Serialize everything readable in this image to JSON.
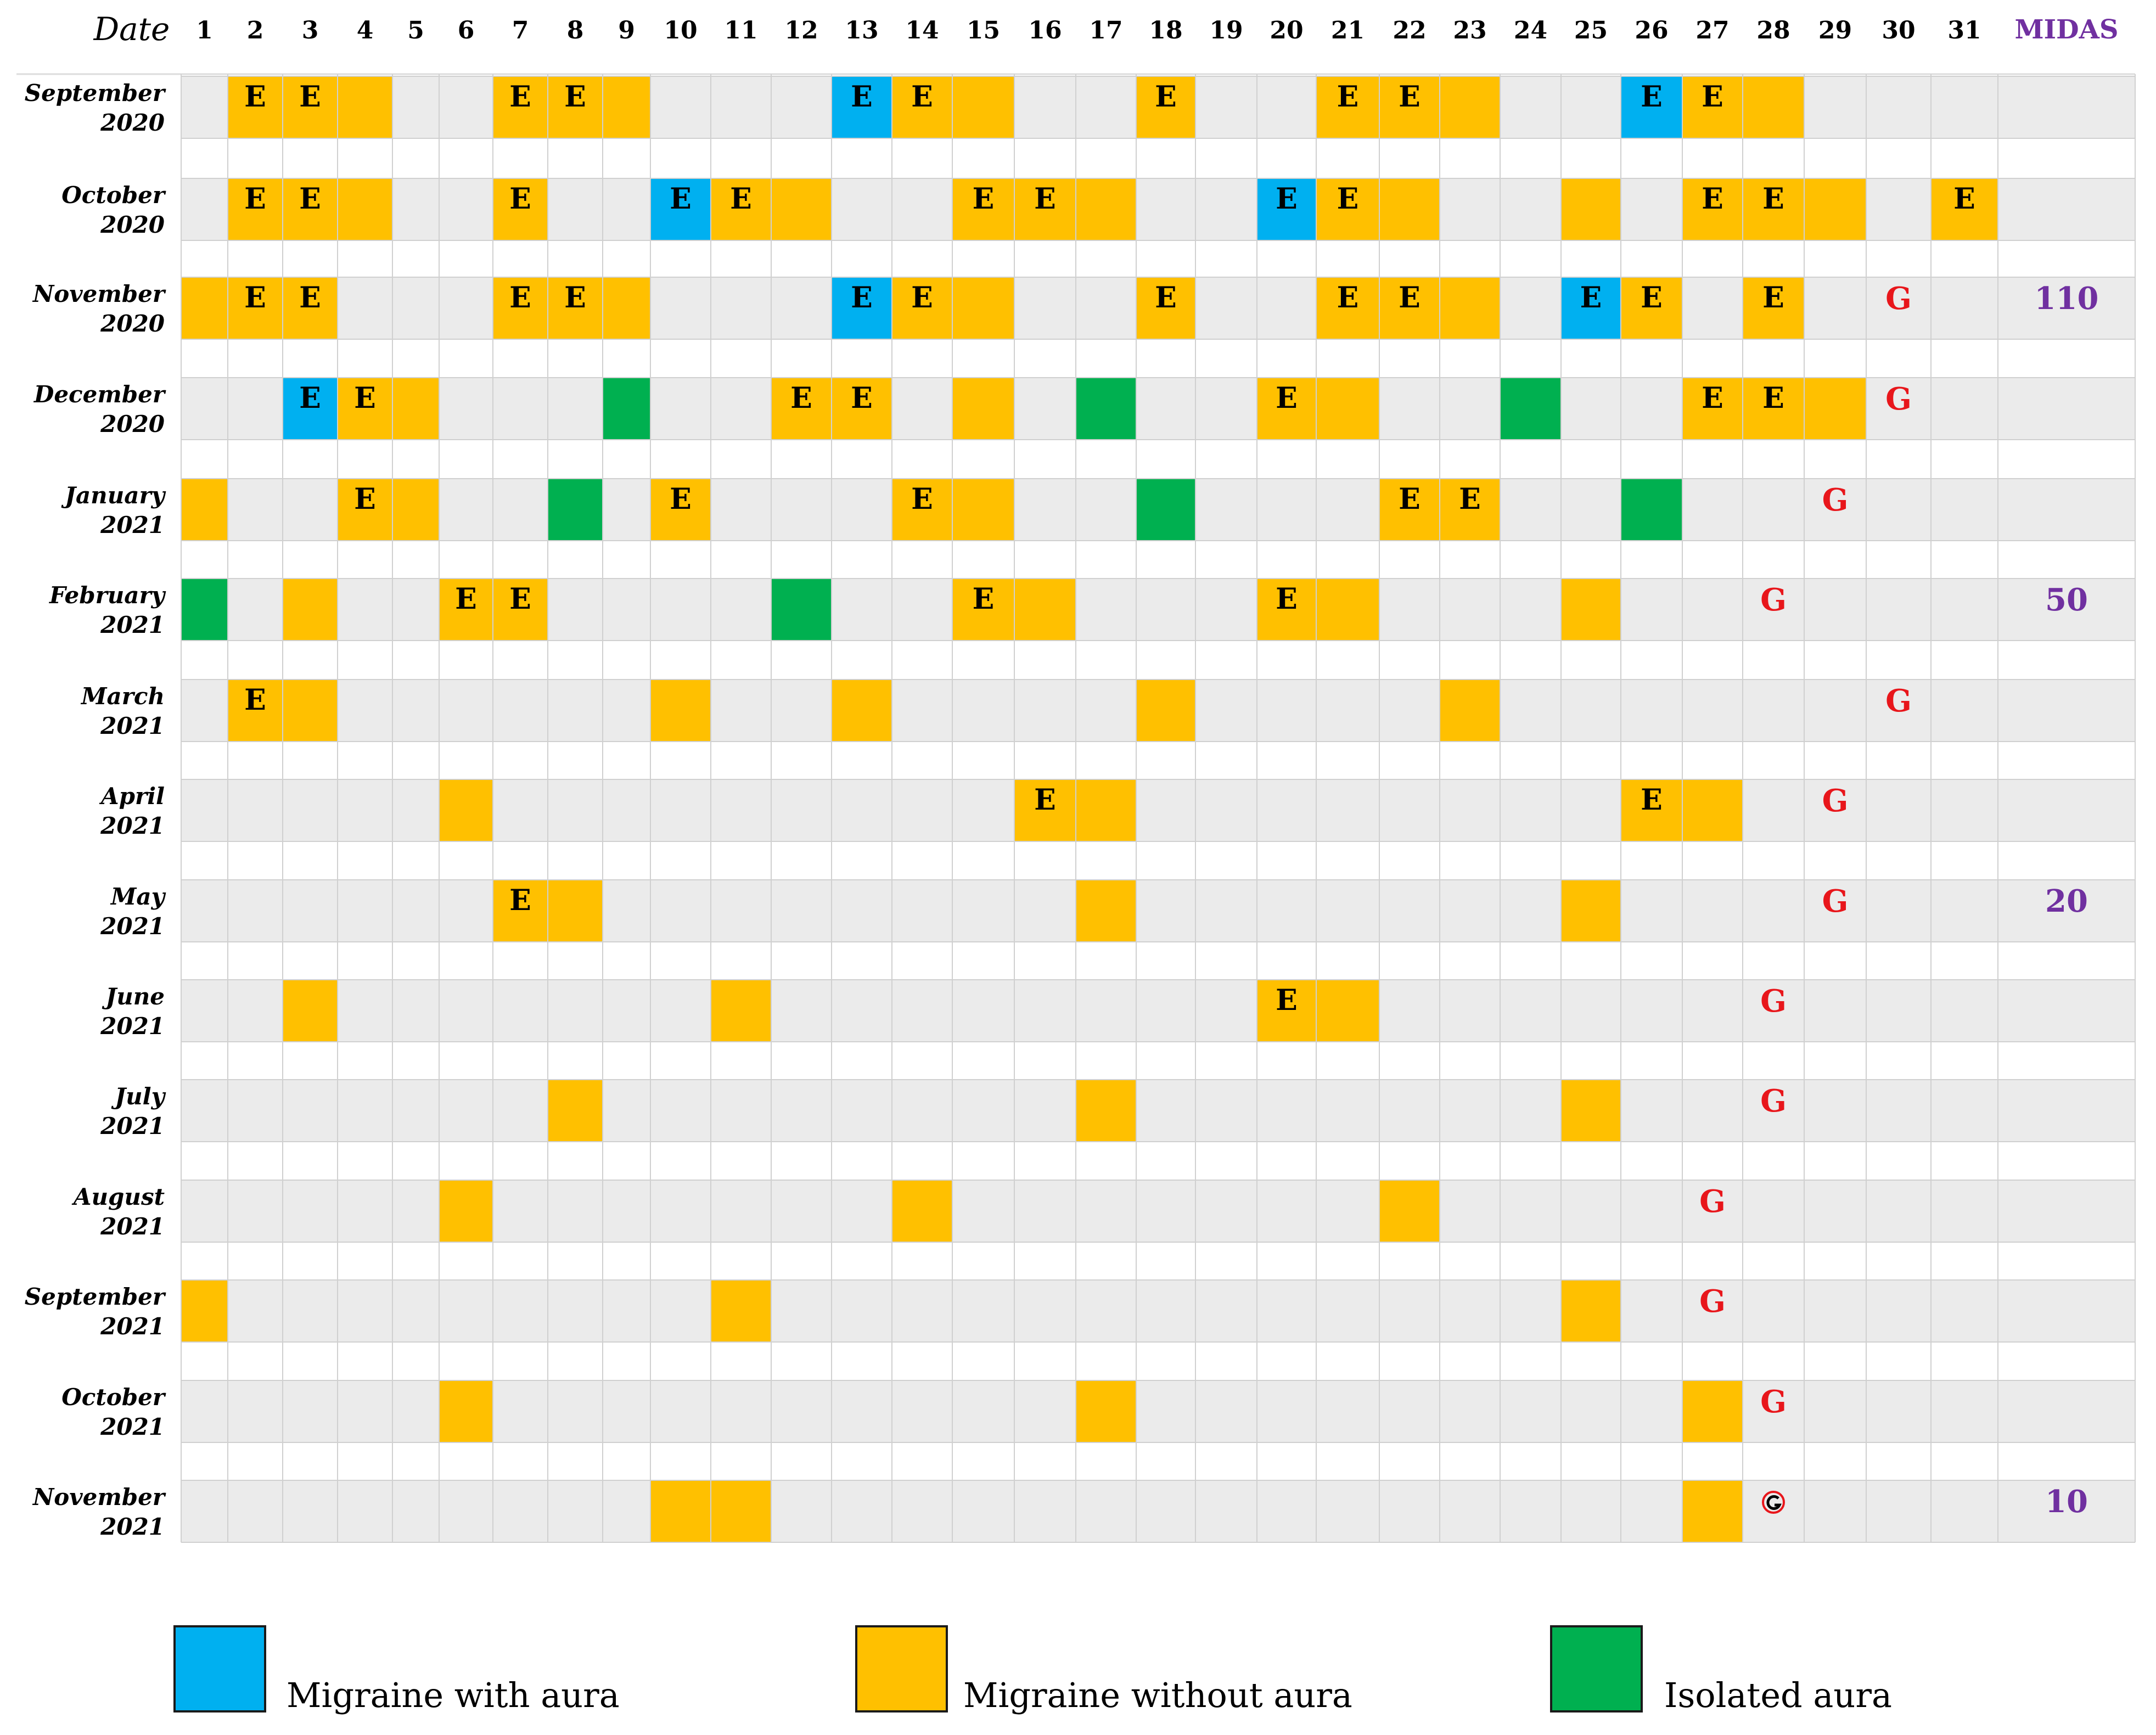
{
  "chart_data": {
    "type": "table",
    "title": "",
    "corner_label": "Date",
    "midas_header": "MIDAS",
    "days": [
      1,
      2,
      3,
      4,
      5,
      6,
      7,
      8,
      9,
      10,
      11,
      12,
      13,
      14,
      15,
      16,
      17,
      18,
      19,
      20,
      21,
      22,
      23,
      24,
      25,
      26,
      27,
      28,
      29,
      30,
      31
    ],
    "colors": {
      "aura": "#00b0f0",
      "no_aura": "#ffc000",
      "isolated": "#00b050",
      "row_bg": "#ebebeb",
      "grid": "#d0d0d0",
      "g_mark": "#e8161b",
      "midas": "#7030a0"
    },
    "legend": [
      {
        "key": "aura",
        "label": "Migraine with aura"
      },
      {
        "key": "no_aura",
        "label": "Migraine without aura"
      },
      {
        "key": "isolated",
        "label": "Isolated aura"
      }
    ],
    "rows": [
      {
        "month": "September",
        "year": "2020",
        "aura": [
          13,
          26
        ],
        "no_aura": [
          2,
          3,
          4,
          7,
          8,
          9,
          14,
          15,
          18,
          21,
          22,
          23,
          27,
          28
        ],
        "isolated": [],
        "e": [
          2,
          3,
          7,
          8,
          13,
          14,
          18,
          21,
          22,
          26,
          27
        ],
        "g": null,
        "g_symbol": "",
        "midas": ""
      },
      {
        "month": "October",
        "year": "2020",
        "aura": [
          10,
          20
        ],
        "no_aura": [
          2,
          3,
          4,
          7,
          11,
          12,
          15,
          16,
          17,
          21,
          22,
          25,
          27,
          28,
          29,
          31
        ],
        "isolated": [],
        "e": [
          2,
          3,
          7,
          10,
          11,
          15,
          16,
          20,
          21,
          27,
          28,
          31
        ],
        "g": null,
        "g_symbol": "",
        "midas": ""
      },
      {
        "month": "November",
        "year": "2020",
        "aura": [
          13,
          25
        ],
        "no_aura": [
          1,
          2,
          3,
          7,
          8,
          9,
          14,
          15,
          18,
          21,
          22,
          23,
          26,
          28
        ],
        "isolated": [],
        "e": [
          2,
          3,
          7,
          8,
          13,
          14,
          18,
          21,
          22,
          25,
          26,
          28
        ],
        "g": 30,
        "g_symbol": "G",
        "midas": "110"
      },
      {
        "month": "December",
        "year": "2020",
        "aura": [
          3
        ],
        "no_aura": [
          4,
          5,
          12,
          13,
          15,
          20,
          21,
          27,
          28,
          29
        ],
        "isolated": [
          9,
          17,
          24
        ],
        "e": [
          3,
          4,
          12,
          13,
          20,
          27,
          28
        ],
        "g": 30,
        "g_symbol": "G",
        "midas": ""
      },
      {
        "month": "January",
        "year": "2021",
        "aura": [],
        "no_aura": [
          1,
          4,
          5,
          10,
          14,
          15,
          22,
          23
        ],
        "isolated": [
          8,
          18,
          26
        ],
        "e": [
          4,
          10,
          14,
          22,
          23
        ],
        "g": 29,
        "g_symbol": "G",
        "midas": ""
      },
      {
        "month": "February",
        "year": "2021",
        "aura": [],
        "no_aura": [
          3,
          6,
          7,
          15,
          16,
          20,
          21,
          25
        ],
        "isolated": [
          1,
          12
        ],
        "e": [
          6,
          7,
          15,
          20
        ],
        "g": 28,
        "g_symbol": "G",
        "midas": "50"
      },
      {
        "month": "March",
        "year": "2021",
        "aura": [],
        "no_aura": [
          2,
          3,
          10,
          13,
          18,
          23
        ],
        "isolated": [],
        "e": [
          2
        ],
        "g": 30,
        "g_symbol": "G",
        "midas": ""
      },
      {
        "month": "April",
        "year": "2021",
        "aura": [],
        "no_aura": [
          6,
          16,
          17,
          26,
          27
        ],
        "isolated": [],
        "e": [
          16,
          26
        ],
        "g": 29,
        "g_symbol": "G",
        "midas": ""
      },
      {
        "month": "May",
        "year": "2021",
        "aura": [],
        "no_aura": [
          7,
          8,
          17,
          25
        ],
        "isolated": [],
        "e": [
          7
        ],
        "g": 29,
        "g_symbol": "G",
        "midas": "20"
      },
      {
        "month": "June",
        "year": "2021",
        "aura": [],
        "no_aura": [
          3,
          11,
          20,
          21
        ],
        "isolated": [],
        "e": [
          20
        ],
        "g": 28,
        "g_symbol": "G",
        "midas": ""
      },
      {
        "month": "July",
        "year": "2021",
        "aura": [],
        "no_aura": [
          8,
          17,
          25
        ],
        "isolated": [],
        "e": [],
        "g": 28,
        "g_symbol": "G",
        "midas": ""
      },
      {
        "month": "August",
        "year": "2021",
        "aura": [],
        "no_aura": [
          6,
          14,
          22
        ],
        "isolated": [],
        "e": [],
        "g": 27,
        "g_symbol": "G",
        "midas": ""
      },
      {
        "month": "September",
        "year": "2021",
        "aura": [],
        "no_aura": [
          1,
          11,
          25
        ],
        "isolated": [],
        "e": [],
        "g": 27,
        "g_symbol": "G",
        "midas": ""
      },
      {
        "month": "October",
        "year": "2021",
        "aura": [],
        "no_aura": [
          6,
          17,
          27
        ],
        "isolated": [],
        "e": [],
        "g": 28,
        "g_symbol": "G",
        "midas": ""
      },
      {
        "month": "November",
        "year": "2021",
        "aura": [],
        "no_aura": [
          10,
          11,
          27
        ],
        "isolated": [],
        "e": [],
        "g": 28,
        "g_symbol": "circle-g-icon",
        "midas": "10"
      }
    ]
  }
}
